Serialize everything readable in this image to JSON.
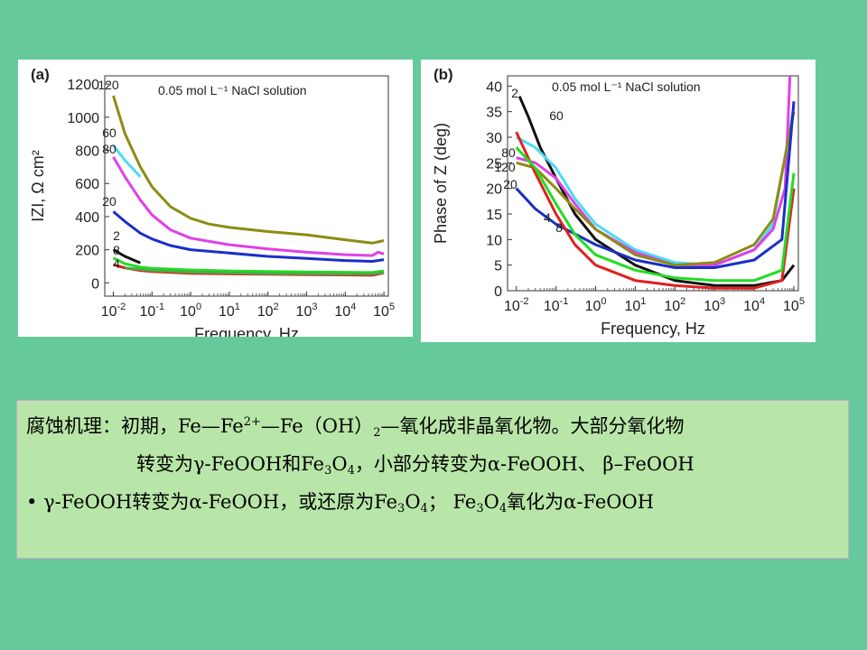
{
  "chart_data": [
    {
      "type": "line",
      "panel_label": "(a)",
      "annotation": "0.05 mol L⁻¹ NaCl solution",
      "xlabel": "Frequency, Hz",
      "ylabel": "IZI, Ω cm²",
      "xscale": "log",
      "xlim": [
        0.006,
        130000
      ],
      "ylim": [
        -80,
        1250
      ],
      "yticks": [
        0,
        200,
        400,
        600,
        800,
        1000,
        1200
      ],
      "xtick_labels": [
        "10⁻²",
        "10⁻¹",
        "10⁰",
        "10¹",
        "10²",
        "10³",
        "10⁴",
        "10⁵"
      ],
      "series": [
        {
          "name": "120",
          "color": "#8c8c14",
          "points": [
            [
              0.01,
              1130
            ],
            [
              0.02,
              900
            ],
            [
              0.05,
              700
            ],
            [
              0.1,
              580
            ],
            [
              0.3,
              460
            ],
            [
              1,
              390
            ],
            [
              3,
              355
            ],
            [
              10,
              335
            ],
            [
              100,
              310
            ],
            [
              1000,
              290
            ],
            [
              10000,
              260
            ],
            [
              50000,
              240
            ],
            [
              100000,
              255
            ]
          ]
        },
        {
          "name": "60",
          "color": "#49dcf5",
          "points": [
            [
              0.01,
              830
            ],
            [
              0.02,
              740
            ],
            [
              0.05,
              640
            ]
          ]
        },
        {
          "name": "80",
          "color": "#e040e8",
          "points": [
            [
              0.01,
              760
            ],
            [
              0.02,
              640
            ],
            [
              0.05,
              500
            ],
            [
              0.1,
              410
            ],
            [
              0.3,
              320
            ],
            [
              1,
              270
            ],
            [
              10,
              230
            ],
            [
              100,
              205
            ],
            [
              1000,
              185
            ],
            [
              10000,
              170
            ],
            [
              50000,
              165
            ],
            [
              70000,
              185
            ],
            [
              100000,
              175
            ]
          ]
        },
        {
          "name": "20",
          "color": "#1a2fc8",
          "points": [
            [
              0.01,
              430
            ],
            [
              0.02,
              370
            ],
            [
              0.05,
              300
            ],
            [
              0.1,
              265
            ],
            [
              0.3,
              225
            ],
            [
              1,
              200
            ],
            [
              10,
              180
            ],
            [
              100,
              160
            ],
            [
              1000,
              148
            ],
            [
              10000,
              135
            ],
            [
              50000,
              130
            ],
            [
              100000,
              140
            ]
          ]
        },
        {
          "name": "2",
          "color": "#111111",
          "points": [
            [
              0.01,
              200
            ],
            [
              0.02,
              160
            ],
            [
              0.05,
              120
            ]
          ]
        },
        {
          "name": "8",
          "color": "#22dd22",
          "points": [
            [
              0.01,
              150
            ],
            [
              0.02,
              115
            ],
            [
              0.05,
              95
            ],
            [
              0.1,
              88
            ],
            [
              1,
              78
            ],
            [
              10,
              72
            ],
            [
              100,
              68
            ],
            [
              1000,
              66
            ],
            [
              10000,
              64
            ],
            [
              50000,
              62
            ],
            [
              100000,
              72
            ]
          ]
        },
        {
          "name": "4",
          "color": "#e02020",
          "points": [
            [
              0.01,
              110
            ],
            [
              0.02,
              90
            ],
            [
              0.05,
              75
            ],
            [
              0.1,
              68
            ],
            [
              1,
              58
            ],
            [
              10,
              54
            ],
            [
              100,
              52
            ],
            [
              1000,
              50
            ],
            [
              10000,
              48
            ],
            [
              50000,
              46
            ],
            [
              100000,
              60
            ]
          ]
        },
        {
          "name": "",
          "color": "#44b044",
          "points": [
            [
              0.02,
              90
            ],
            [
              0.1,
              75
            ],
            [
              1,
              65
            ],
            [
              10,
              60
            ],
            [
              100,
              56
            ],
            [
              1000,
              55
            ],
            [
              10000,
              54
            ],
            [
              50000,
              55
            ],
            [
              100000,
              62
            ]
          ]
        }
      ]
    },
    {
      "type": "line",
      "panel_label": "(b)",
      "annotation": "0.05 mol L⁻¹ NaCl solution",
      "xlabel": "Frequency, Hz",
      "ylabel": "Phase of Z (deg)",
      "xscale": "log",
      "xlim": [
        0.006,
        130000
      ],
      "ylim": [
        0,
        42
      ],
      "yticks": [
        0,
        5,
        10,
        15,
        20,
        25,
        30,
        35,
        40
      ],
      "xtick_labels": [
        "10⁻²",
        "10⁻¹",
        "10⁰",
        "10¹",
        "10²",
        "10³",
        "10⁴",
        "10⁵"
      ],
      "series": [
        {
          "name": "2",
          "color": "#111111",
          "points": [
            [
              0.012,
              38
            ],
            [
              0.02,
              34
            ],
            [
              0.04,
              28
            ],
            [
              0.1,
              22
            ],
            [
              0.3,
              15
            ],
            [
              1,
              10
            ],
            [
              10,
              5
            ],
            [
              100,
              2
            ],
            [
              1000,
              1
            ],
            [
              10000,
              1
            ],
            [
              50000,
              2
            ],
            [
              100000,
              5
            ]
          ]
        },
        {
          "name": "60",
          "color": "#49dcf5",
          "points": [
            [
              0.01,
              30
            ],
            [
              0.03,
              28
            ],
            [
              0.1,
              24
            ],
            [
              0.3,
              18
            ],
            [
              1,
              13
            ],
            [
              10,
              8
            ],
            [
              100,
              5.5
            ],
            [
              1000,
              5
            ],
            [
              10000,
              8
            ],
            [
              30000,
              13
            ],
            [
              100000,
              36
            ]
          ]
        },
        {
          "name": "80",
          "color": "#e040e8",
          "points": [
            [
              0.01,
              26
            ],
            [
              0.03,
              25
            ],
            [
              0.1,
              22
            ],
            [
              0.3,
              17
            ],
            [
              1,
              12
            ],
            [
              10,
              7.5
            ],
            [
              100,
              5
            ],
            [
              1000,
              5
            ],
            [
              10000,
              8
            ],
            [
              30000,
              12
            ],
            [
              60000,
              20
            ],
            [
              80000,
              42
            ]
          ]
        },
        {
          "name": "120",
          "color": "#8c8c14",
          "points": [
            [
              0.01,
              25
            ],
            [
              0.03,
              24
            ],
            [
              0.1,
              20
            ],
            [
              0.3,
              16
            ],
            [
              1,
              12
            ],
            [
              10,
              7
            ],
            [
              100,
              5
            ],
            [
              1000,
              5.5
            ],
            [
              10000,
              9
            ],
            [
              30000,
              14
            ],
            [
              100000,
              35
            ]
          ]
        },
        {
          "name": "20",
          "color": "#1a2fc8",
          "points": [
            [
              0.01,
              20
            ],
            [
              0.03,
              16
            ],
            [
              0.1,
              13
            ],
            [
              1,
              9
            ],
            [
              10,
              6
            ],
            [
              100,
              4.5
            ],
            [
              1000,
              4.5
            ],
            [
              10000,
              6
            ],
            [
              50000,
              10
            ],
            [
              100000,
              37
            ]
          ]
        },
        {
          "name": "4",
          "color": "#e02020",
          "points": [
            [
              0.01,
              31
            ],
            [
              0.03,
              23
            ],
            [
              0.1,
              15
            ],
            [
              0.3,
              9
            ],
            [
              1,
              5
            ],
            [
              10,
              2
            ],
            [
              100,
              1
            ],
            [
              1000,
              0.5
            ],
            [
              10000,
              0.5
            ],
            [
              50000,
              2
            ],
            [
              100000,
              20
            ]
          ]
        },
        {
          "name": "8",
          "color": "#22dd22",
          "points": [
            [
              0.01,
              28
            ],
            [
              0.03,
              24
            ],
            [
              0.1,
              17
            ],
            [
              0.3,
              11
            ],
            [
              1,
              7
            ],
            [
              10,
              4
            ],
            [
              100,
              2.5
            ],
            [
              1000,
              2
            ],
            [
              10000,
              2
            ],
            [
              50000,
              4
            ],
            [
              100000,
              23
            ]
          ]
        }
      ]
    }
  ],
  "text": {
    "line1_main": "腐蚀机理：初期，Fe—Fe",
    "line1_sup": "2+",
    "line1_after_sup": "—Fe（OH）",
    "line1_sub": "2",
    "line1_end": "—氧化成非晶氧化物。大部分氧化物",
    "line2_start": "转变为γ-FeOOH和Fe",
    "line2_sub1": "3",
    "line2_mid": "O",
    "line2_sub2": "4",
    "line2_end": "，小部分转变为α-FeOOH、 β–FeOOH",
    "bullet": "•",
    "line3_start": "γ-FeOOH转变为α-FeOOH，或还原为Fe",
    "line3_sub1": "3",
    "line3_o1": "O",
    "line3_sub2": "4",
    "line3_mid": "； Fe",
    "line3_sub3": "3",
    "line3_o2": "O",
    "line3_sub4": "4",
    "line3_end": "氧化为α-FeOOH"
  }
}
